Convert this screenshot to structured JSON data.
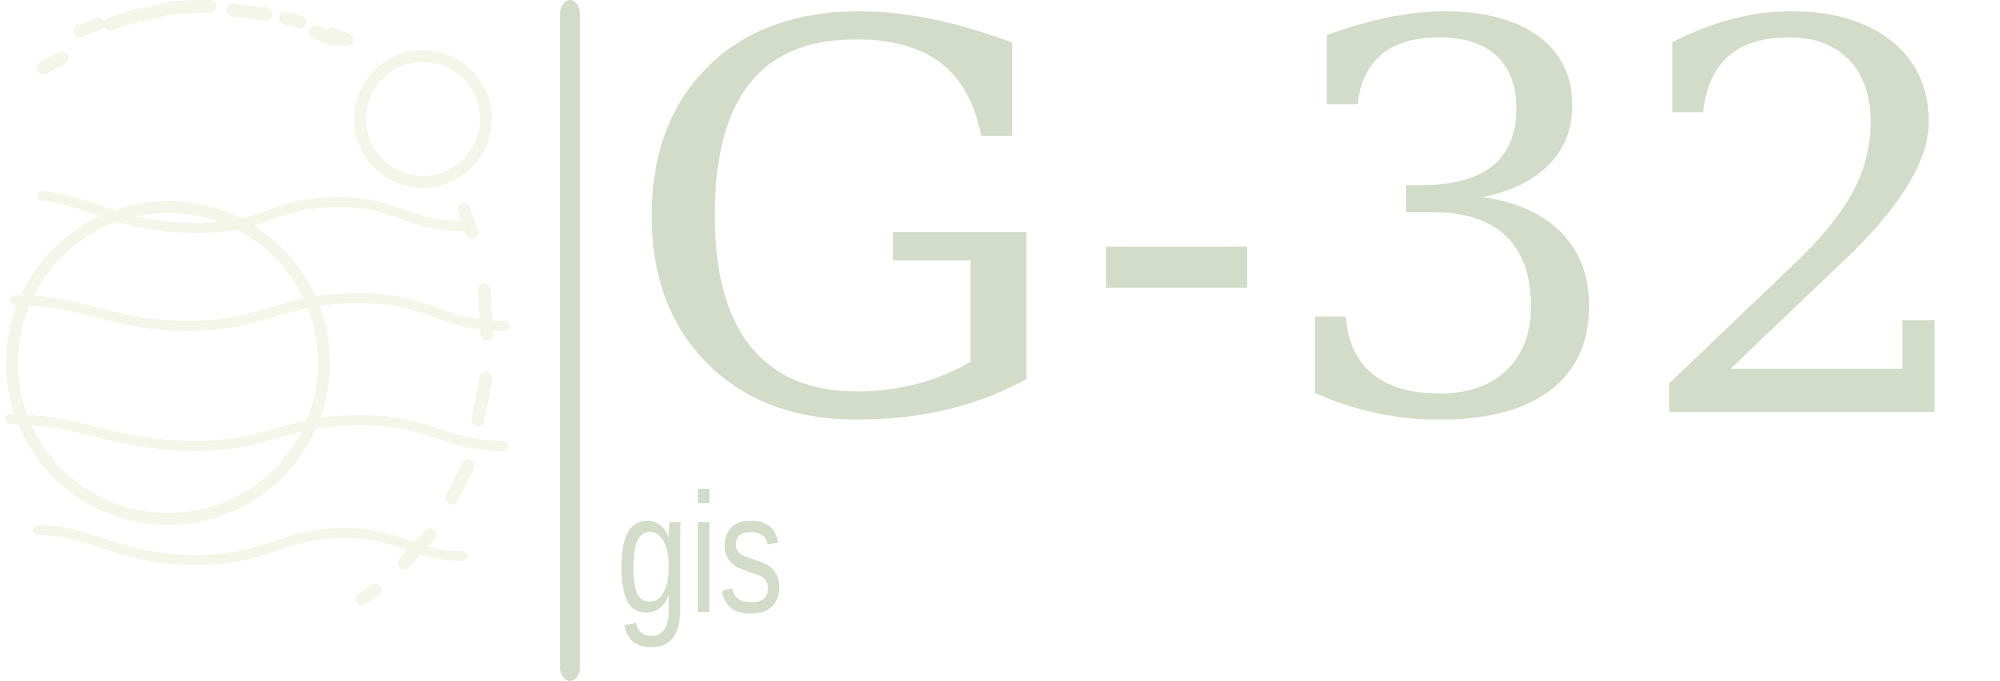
{
  "brand": {
    "wordmark": "G-32",
    "subtitle": "gis",
    "colors": {
      "emblem": "#f5f6ea",
      "text": "#d2dcc8"
    },
    "emblem_icon": "globe-with-moon-icon"
  }
}
